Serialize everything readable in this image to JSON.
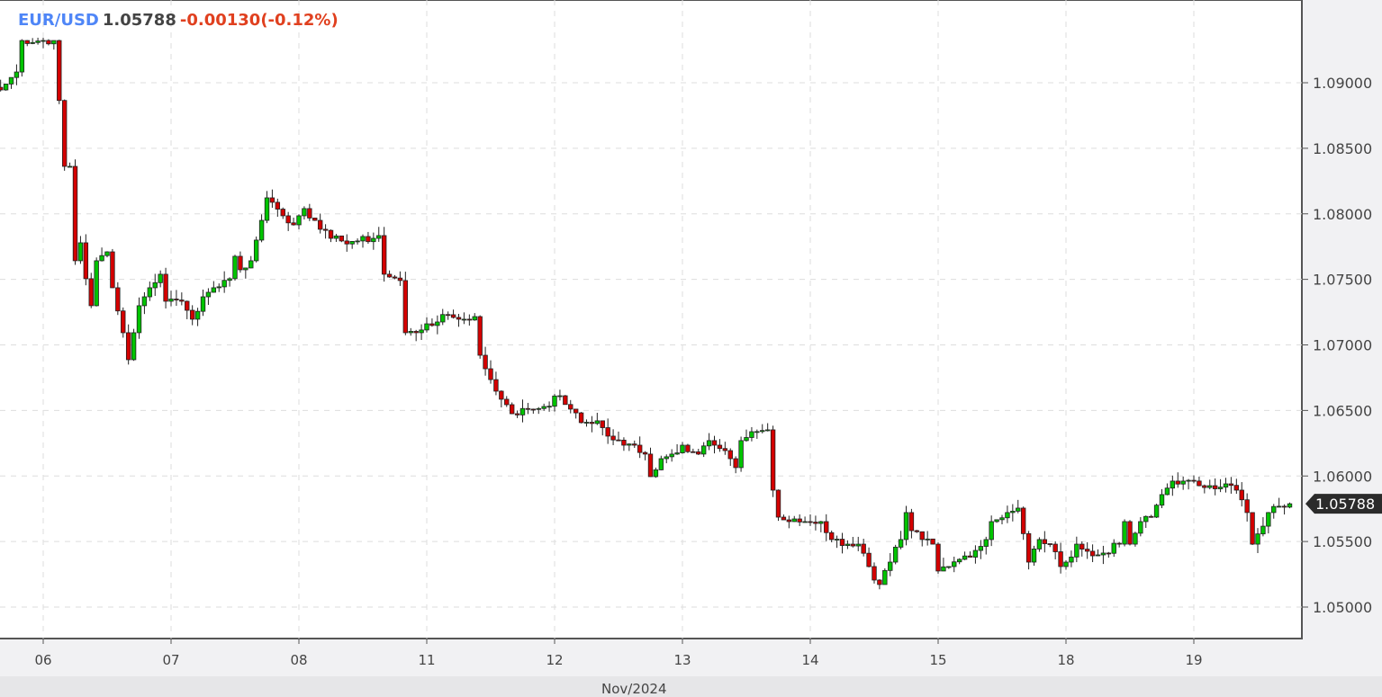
{
  "header": {
    "symbol": "EUR/USD",
    "price": "1.05788",
    "change": "-0.00130(-0.12%)"
  },
  "colors": {
    "up": "#00c400",
    "down": "#d40000",
    "symbol": "#4f86f7",
    "change": "#e0401f",
    "grid": "#dddddd",
    "last_price_bg": "#2b2b2b"
  },
  "month_label": "Nov/2024",
  "chart_data": {
    "type": "candlestick",
    "interval": "1h",
    "symbol": "EUR/USD",
    "ylim": [
      1.0485,
      1.0945
    ],
    "y_ticks": [
      1.09,
      1.085,
      1.08,
      1.075,
      1.07,
      1.065,
      1.06,
      1.055,
      1.05
    ],
    "y_tick_labels": [
      "1.09000",
      "1.08500",
      "1.08000",
      "1.07500",
      "1.07000",
      "1.06500",
      "1.06000",
      "1.05500",
      "1.05000"
    ],
    "x_tick_labels": [
      "06",
      "07",
      "08",
      "11",
      "12",
      "13",
      "14",
      "15",
      "18",
      "19"
    ],
    "last_price": 1.05788,
    "last_price_label": "1.05788",
    "grid": true,
    "close_path": [
      {
        "t": "05 16:00",
        "c": 1.08945
      },
      {
        "t": "05 19:00",
        "c": 1.09082
      },
      {
        "t": "05 20:00",
        "c": 1.09322
      },
      {
        "t": "06 02:00",
        "c": 1.09322
      },
      {
        "t": "06 04:00",
        "c": 1.08362
      },
      {
        "t": "06 05:00",
        "c": 1.08362
      },
      {
        "t": "06 06:00",
        "c": 1.07642
      },
      {
        "t": "06 07:00",
        "c": 1.07779
      },
      {
        "t": "06 08:00",
        "c": 1.07505
      },
      {
        "t": "06 09:00",
        "c": 1.07299
      },
      {
        "t": "06 10:00",
        "c": 1.07642
      },
      {
        "t": "06 12:00",
        "c": 1.0771
      },
      {
        "t": "06 13:00",
        "c": 1.07436
      },
      {
        "t": "06 15:00",
        "c": 1.07093
      },
      {
        "t": "06 16:00",
        "c": 1.06887
      },
      {
        "t": "06 17:00",
        "c": 1.07093
      },
      {
        "t": "06 18:00",
        "c": 1.07299
      },
      {
        "t": "06 19:00",
        "c": 1.07367
      },
      {
        "t": "06 20:00",
        "c": 1.07436
      },
      {
        "t": "06 22:00",
        "c": 1.07539
      },
      {
        "t": "06 23:00",
        "c": 1.07333
      },
      {
        "t": "07 02:00",
        "c": 1.07333
      },
      {
        "t": "07 03:00",
        "c": 1.07264
      },
      {
        "t": "07 04:00",
        "c": 1.07196
      },
      {
        "t": "07 06:00",
        "c": 1.07367
      },
      {
        "t": "07 08:00",
        "c": 1.07436
      },
      {
        "t": "07 11:00",
        "c": 1.07505
      },
      {
        "t": "07 12:00",
        "c": 1.07676
      },
      {
        "t": "07 13:00",
        "c": 1.07573
      },
      {
        "t": "07 15:00",
        "c": 1.07642
      },
      {
        "t": "07 17:00",
        "c": 1.0795
      },
      {
        "t": "07 18:00",
        "c": 1.08122
      },
      {
        "t": "07 19:00",
        "c": 1.08088
      },
      {
        "t": "07 21:00",
        "c": 1.07985
      },
      {
        "t": "07 23:00",
        "c": 1.07916
      },
      {
        "t": "08 00:00",
        "c": 1.07985
      },
      {
        "t": "08 01:00",
        "c": 1.0804
      },
      {
        "t": "08 03:00",
        "c": 1.0795
      },
      {
        "t": "08 04:00",
        "c": 1.07882
      },
      {
        "t": "08 06:00",
        "c": 1.07813
      },
      {
        "t": "08 08:00",
        "c": 1.07793
      },
      {
        "t": "08 11:00",
        "c": 1.07793
      },
      {
        "t": "08 14:00",
        "c": 1.07813
      },
      {
        "t": "08 15:00",
        "c": 1.07834
      },
      {
        "t": "08 16:00",
        "c": 1.07539
      },
      {
        "t": "08 19:00",
        "c": 1.07491
      },
      {
        "t": "08 20:00",
        "c": 1.07093
      },
      {
        "t": "08 22:00",
        "c": 1.07093
      },
      {
        "t": "11 00:00",
        "c": 1.07161
      },
      {
        "t": "11 02:00",
        "c": 1.07175
      },
      {
        "t": "11 04:00",
        "c": 1.0723
      },
      {
        "t": "11 06:00",
        "c": 1.07196
      },
      {
        "t": "11 07:00",
        "c": 1.07196
      },
      {
        "t": "11 09:00",
        "c": 1.07216
      },
      {
        "t": "11 10:00",
        "c": 1.06921
      },
      {
        "t": "11 11:00",
        "c": 1.06818
      },
      {
        "t": "11 13:00",
        "c": 1.06647
      },
      {
        "t": "11 15:00",
        "c": 1.06544
      },
      {
        "t": "11 16:00",
        "c": 1.06475
      },
      {
        "t": "11 19:00",
        "c": 1.0651
      },
      {
        "t": "11 22:00",
        "c": 1.0653
      },
      {
        "t": "12 01:00",
        "c": 1.06612
      },
      {
        "t": "12 03:00",
        "c": 1.0651
      },
      {
        "t": "12 05:00",
        "c": 1.06407
      },
      {
        "t": "12 08:00",
        "c": 1.06421
      },
      {
        "t": "12 10:00",
        "c": 1.06304
      },
      {
        "t": "12 13:00",
        "c": 1.06235
      },
      {
        "t": "12 15:00",
        "c": 1.06235
      },
      {
        "t": "12 17:00",
        "c": 1.06167
      },
      {
        "t": "12 18:00",
        "c": 1.05995
      },
      {
        "t": "12 20:00",
        "c": 1.06132
      },
      {
        "t": "12 22:00",
        "c": 1.06167
      },
      {
        "t": "13 00:00",
        "c": 1.06235
      },
      {
        "t": "13 03:00",
        "c": 1.06167
      },
      {
        "t": "13 05:00",
        "c": 1.0627
      },
      {
        "t": "13 06:00",
        "c": 1.06235
      },
      {
        "t": "13 09:00",
        "c": 1.06132
      },
      {
        "t": "13 10:00",
        "c": 1.06064
      },
      {
        "t": "13 11:00",
        "c": 1.0627
      },
      {
        "t": "13 13:00",
        "c": 1.06338
      },
      {
        "t": "13 16:00",
        "c": 1.06352
      },
      {
        "t": "13 17:00",
        "c": 1.05892
      },
      {
        "t": "13 18:00",
        "c": 1.05686
      },
      {
        "t": "13 20:00",
        "c": 1.05652
      },
      {
        "t": "13 23:00",
        "c": 1.05652
      },
      {
        "t": "14 02:00",
        "c": 1.05652
      },
      {
        "t": "14 04:00",
        "c": 1.05515
      },
      {
        "t": "14 07:00",
        "c": 1.0548
      },
      {
        "t": "14 09:00",
        "c": 1.0548
      },
      {
        "t": "14 11:00",
        "c": 1.05309
      },
      {
        "t": "14 12:00",
        "c": 1.05206
      },
      {
        "t": "14 13:00",
        "c": 1.05172
      },
      {
        "t": "14 15:00",
        "c": 1.05343
      },
      {
        "t": "14 17:00",
        "c": 1.05515
      },
      {
        "t": "14 18:00",
        "c": 1.05721
      },
      {
        "t": "14 19:00",
        "c": 1.05583
      },
      {
        "t": "14 21:00",
        "c": 1.05515
      },
      {
        "t": "14 23:00",
        "c": 1.0548
      },
      {
        "t": "15 00:00",
        "c": 1.05275
      },
      {
        "t": "15 02:00",
        "c": 1.05309
      },
      {
        "t": "15 04:00",
        "c": 1.05364
      },
      {
        "t": "15 07:00",
        "c": 1.05432
      },
      {
        "t": "15 09:00",
        "c": 1.05515
      },
      {
        "t": "15 10:00",
        "c": 1.05652
      },
      {
        "t": "15 13:00",
        "c": 1.05721
      },
      {
        "t": "15 15:00",
        "c": 1.05755
      },
      {
        "t": "15 17:00",
        "c": 1.05343
      },
      {
        "t": "15 19:00",
        "c": 1.05515
      },
      {
        "t": "15 21:00",
        "c": 1.0548
      },
      {
        "t": "15 23:00",
        "c": 1.05309
      },
      {
        "t": "18 00:00",
        "c": 1.05343
      },
      {
        "t": "18 02:00",
        "c": 1.0548
      },
      {
        "t": "18 05:00",
        "c": 1.05391
      },
      {
        "t": "18 07:00",
        "c": 1.05412
      },
      {
        "t": "18 10:00",
        "c": 1.0548
      },
      {
        "t": "18 11:00",
        "c": 1.05652
      },
      {
        "t": "18 12:00",
        "c": 1.0548
      },
      {
        "t": "18 14:00",
        "c": 1.05652
      },
      {
        "t": "18 16:00",
        "c": 1.05686
      },
      {
        "t": "18 18:00",
        "c": 1.05858
      },
      {
        "t": "18 20:00",
        "c": 1.05961
      },
      {
        "t": "18 22:00",
        "c": 1.05961
      },
      {
        "t": "19 01:00",
        "c": 1.05926
      },
      {
        "t": "19 03:00",
        "c": 1.05926
      },
      {
        "t": "19 06:00",
        "c": 1.0594
      },
      {
        "t": "19 08:00",
        "c": 1.05892
      },
      {
        "t": "19 10:00",
        "c": 1.05721
      },
      {
        "t": "19 11:00",
        "c": 1.0548
      },
      {
        "t": "19 13:00",
        "c": 1.05617
      },
      {
        "t": "19 14:00",
        "c": 1.05721
      },
      {
        "t": "19 16:00",
        "c": 1.05769
      },
      {
        "t": "19 18:00",
        "c": 1.05788
      }
    ]
  }
}
